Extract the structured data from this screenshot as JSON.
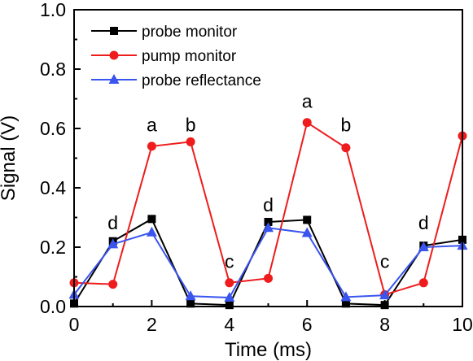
{
  "chart_data": {
    "type": "line",
    "title": "",
    "xlabel": "Time (ms)",
    "ylabel": "Signal (V)",
    "xlim": [
      0,
      10
    ],
    "ylim": [
      0,
      1.0
    ],
    "x_ticks": [
      0,
      2,
      4,
      6,
      8,
      10
    ],
    "y_ticks": [
      0.0,
      0.2,
      0.4,
      0.6,
      0.8,
      1.0
    ],
    "x_tick_labels": [
      "0",
      "2",
      "4",
      "6",
      "8",
      "10"
    ],
    "y_tick_labels": [
      "0.0",
      "0.2",
      "0.4",
      "0.6",
      "0.8",
      "1.0"
    ],
    "grid": false,
    "legend_position": "top-left",
    "series": [
      {
        "name": "probe monitor",
        "color": "#000000",
        "marker": "square",
        "x": [
          0,
          1,
          2,
          3,
          4,
          5,
          6,
          7,
          8,
          9,
          10
        ],
        "y": [
          0.01,
          0.22,
          0.295,
          0.01,
          0.005,
          0.285,
          0.292,
          0.01,
          0.005,
          0.205,
          0.225
        ]
      },
      {
        "name": "pump monitor",
        "color": "#ee1c1c",
        "marker": "circle",
        "x": [
          0,
          1,
          2,
          3,
          4,
          5,
          6,
          7,
          8,
          9,
          10
        ],
        "y": [
          0.08,
          0.075,
          0.54,
          0.555,
          0.08,
          0.095,
          0.62,
          0.535,
          0.04,
          0.08,
          0.575
        ]
      },
      {
        "name": "probe reflectance",
        "color": "#3a55ee",
        "marker": "triangle",
        "x": [
          0,
          1,
          2,
          3,
          4,
          5,
          6,
          7,
          8,
          9,
          10
        ],
        "y": [
          0.04,
          0.21,
          0.25,
          0.035,
          0.03,
          0.265,
          0.248,
          0.032,
          0.038,
          0.2,
          0.205
        ]
      }
    ],
    "annotations": [
      {
        "text": "d",
        "x": 1,
        "y": 0.26
      },
      {
        "text": "a",
        "x": 2,
        "y": 0.59
      },
      {
        "text": "b",
        "x": 3,
        "y": 0.59
      },
      {
        "text": "c",
        "x": 4,
        "y": 0.13
      },
      {
        "text": "d",
        "x": 5,
        "y": 0.32
      },
      {
        "text": "a",
        "x": 6,
        "y": 0.67
      },
      {
        "text": "b",
        "x": 7,
        "y": 0.59
      },
      {
        "text": "c",
        "x": 8,
        "y": 0.13
      },
      {
        "text": "d",
        "x": 9,
        "y": 0.26
      }
    ]
  }
}
